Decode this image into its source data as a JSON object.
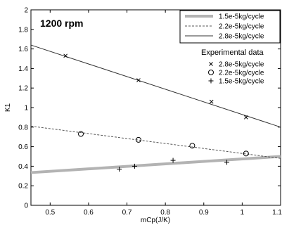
{
  "chart_data": {
    "type": "line",
    "title": "",
    "annotation": "1200 rpm",
    "xlabel": "mCp(J/K)",
    "ylabel": "K1",
    "xlim": [
      0.45,
      1.1
    ],
    "ylim": [
      0,
      2
    ],
    "xticks": [
      0.5,
      0.6,
      0.7,
      0.8,
      0.9,
      1,
      1.1
    ],
    "xtick_labels": [
      "0.5",
      "0.6",
      "0.7",
      "0.8",
      "0.9",
      "1",
      "1.1"
    ],
    "yticks": [
      0,
      0.2,
      0.4,
      0.6,
      0.8,
      1,
      1.2,
      1.4,
      1.6,
      1.8,
      2
    ],
    "ytick_labels": [
      "0",
      "0.2",
      "0.4",
      "0.6",
      "0.8",
      "1",
      "1.2",
      "1.4",
      "1.6",
      "1.8",
      "2"
    ],
    "grid": false,
    "legend_position": "top-right",
    "experimental_header": "Experimental data",
    "lines": [
      {
        "name": "1.5e-5kg/cycle",
        "style": "solid-thick",
        "color": "#b3b3b3",
        "x": [
          0.45,
          1.1
        ],
        "y": [
          0.335,
          0.5
        ]
      },
      {
        "name": "2.2e-5kg/cycle",
        "style": "dashed",
        "color": "#555555",
        "x": [
          0.45,
          1.1
        ],
        "y": [
          0.81,
          0.48
        ]
      },
      {
        "name": "2.8e-5kg/cycle",
        "style": "solid",
        "color": "#333333",
        "x": [
          0.45,
          1.1
        ],
        "y": [
          1.64,
          0.8
        ]
      }
    ],
    "scatter": [
      {
        "name": "2.8e-5kg/cycle",
        "marker": "x",
        "x": [
          0.54,
          0.73,
          0.92,
          1.01
        ],
        "y": [
          1.53,
          1.28,
          1.06,
          0.9
        ]
      },
      {
        "name": "2.2e-5kg/cycle",
        "marker": "o",
        "x": [
          0.58,
          0.73,
          0.87,
          1.01
        ],
        "y": [
          0.73,
          0.67,
          0.61,
          0.53
        ]
      },
      {
        "name": "1.5e-5kg/cycle",
        "marker": "+",
        "x": [
          0.68,
          0.72,
          0.82,
          0.96
        ],
        "y": [
          0.37,
          0.4,
          0.46,
          0.44
        ]
      }
    ]
  }
}
